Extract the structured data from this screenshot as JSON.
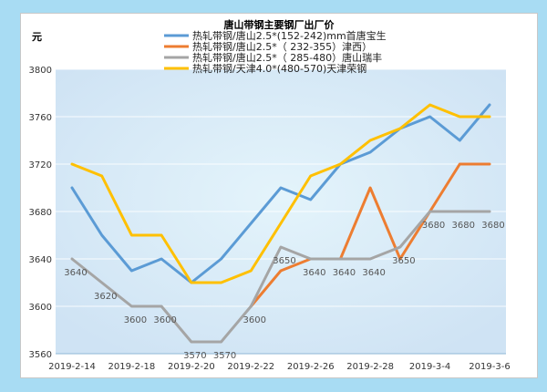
{
  "chart_data": {
    "type": "line",
    "title": "唐山带钢主要钢厂出厂价",
    "ylabel": "元",
    "xlabel": "",
    "ylim": [
      3560,
      3800
    ],
    "yticks": [
      3560,
      3600,
      3640,
      3680,
      3720,
      3760,
      3800
    ],
    "x": [
      "2019-2-14",
      "2019-2-15",
      "2019-2-18",
      "2019-2-19",
      "2019-2-20",
      "2019-2-21",
      "2019-2-22",
      "2019-2-25",
      "2019-2-26",
      "2019-2-27",
      "2019-2-28",
      "2019-3-1",
      "2019-3-4",
      "2019-3-5",
      "2019-3-6"
    ],
    "x_tick_labels": [
      "2019-2-14",
      "2019-2-18",
      "2019-2-20",
      "2019-2-22",
      "2019-2-26",
      "2019-2-28",
      "2019-3-4",
      "2019-3-6"
    ],
    "x_tick_index": [
      0,
      2,
      4,
      6,
      8,
      10,
      12,
      14
    ],
    "grid": true,
    "legend_position": "top",
    "series": [
      {
        "name": "热轧带钢/唐山2.5*(152-242)mm首唐宝生",
        "color": "#5b9bd5",
        "labels": false,
        "values": [
          3700,
          3660,
          3630,
          3640,
          3620,
          3640,
          3670,
          3700,
          3690,
          3720,
          3730,
          3750,
          3760,
          3740,
          3770
        ]
      },
      {
        "name": "热轧带钢/唐山2.5*（ 232-355）津西）",
        "color": "#ed7d31",
        "labels": false,
        "values": [
          null,
          null,
          null,
          null,
          null,
          null,
          3600,
          3630,
          3640,
          3640,
          3700,
          3640,
          3680,
          3720,
          3720
        ]
      },
      {
        "name": "热轧带钢/唐山2.5*（ 285-480）唐山瑞丰",
        "color": "#a5a5a5",
        "labels": true,
        "values": [
          3640,
          3620,
          3600,
          3600,
          3570,
          3570,
          3600,
          3650,
          3640,
          3640,
          3640,
          3650,
          3680,
          3680,
          3680
        ]
      },
      {
        "name": "热轧带钢/天津4.0*(480-570)天津荣钢",
        "color": "#ffc000",
        "labels": false,
        "values": [
          3720,
          3710,
          3660,
          3660,
          3620,
          3620,
          3630,
          3670,
          3710,
          3720,
          3740,
          3750,
          3770,
          3760,
          3760
        ]
      }
    ]
  }
}
